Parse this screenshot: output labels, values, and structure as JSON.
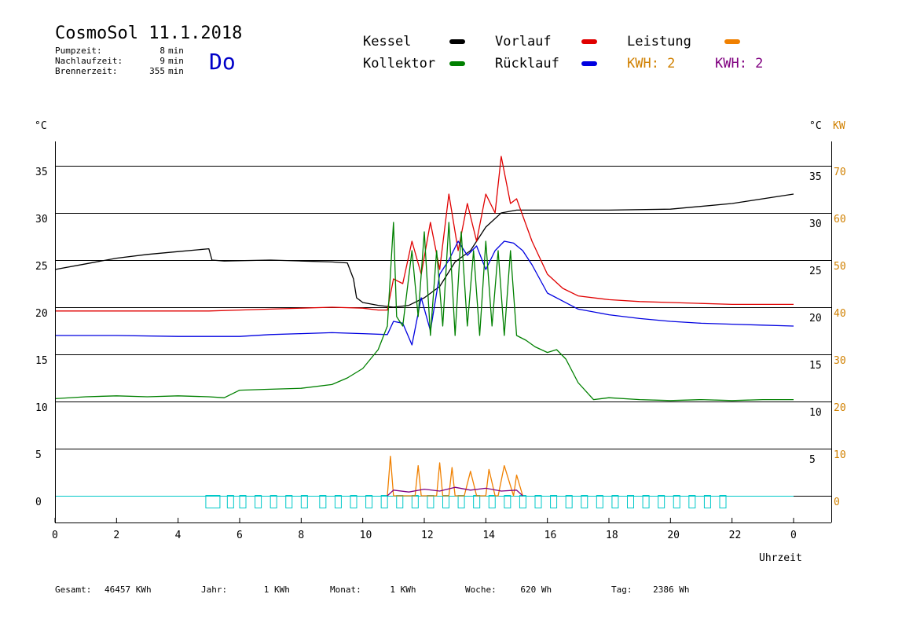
{
  "header": {
    "title": "CosmoSol 11.1.2018",
    "day": "Do",
    "stats": [
      {
        "label": "Pumpzeit:",
        "value": "8",
        "unit": "min"
      },
      {
        "label": "Nachlaufzeit:",
        "value": "9",
        "unit": "min"
      },
      {
        "label": "Brennerzeit:",
        "value": "355",
        "unit": "min"
      }
    ]
  },
  "legend": {
    "kessel": {
      "label": "Kessel",
      "color": "#000000"
    },
    "vorlauf": {
      "label": "Vorlauf",
      "color": "#e00000"
    },
    "leistung": {
      "label": "Leistung",
      "color": "#f08000"
    },
    "kollektor": {
      "label": "Kollektor",
      "color": "#008000"
    },
    "ruecklauf": {
      "label": "Rücklauf",
      "color": "#0000e0"
    },
    "kwh1": {
      "label": "KWH: 2",
      "color": "#d08000"
    },
    "kwh2": {
      "label": "KWH: 2",
      "color": "#800080"
    }
  },
  "axes": {
    "left_unit": "°C",
    "right_unit": "°C",
    "kw_unit": "KW",
    "x_label": "Uhrzeit",
    "y_left_ticks": [
      "35",
      "30",
      "25",
      "20",
      "15",
      "10",
      "5",
      "0"
    ],
    "y_right_ticks": [
      "35",
      "30",
      "25",
      "20",
      "15",
      "10",
      "5"
    ],
    "kw_ticks": [
      "70",
      "60",
      "50",
      "40",
      "30",
      "20",
      "10",
      "0"
    ],
    "x_ticks": [
      "0",
      "2",
      "4",
      "6",
      "8",
      "10",
      "12",
      "14",
      "16",
      "18",
      "20",
      "22",
      "0"
    ]
  },
  "footer": {
    "gesamt": {
      "label": "Gesamt:",
      "value": "46457 KWh"
    },
    "jahr": {
      "label": "Jahr:",
      "value": "1 KWh"
    },
    "monat": {
      "label": "Monat:",
      "value": "1 KWh"
    },
    "woche": {
      "label": "Woche:",
      "value": "620 Wh"
    },
    "tag": {
      "label": "Tag:",
      "value": "2386 Wh"
    }
  },
  "chart_data": {
    "type": "line",
    "xlim": [
      0,
      24
    ],
    "ylim": [
      0,
      38
    ],
    "y2lim": [
      0,
      76
    ],
    "grid": true,
    "series": [
      {
        "name": "Kessel",
        "color": "#000000",
        "x": [
          0,
          1,
          2,
          3,
          4,
          5,
          5.1,
          5.5,
          7,
          8,
          9,
          9.5,
          9.7,
          9.8,
          10,
          10.5,
          11,
          11.5,
          12,
          12.5,
          13,
          13.5,
          14,
          14.5,
          15,
          17.9,
          18,
          20,
          22,
          24
        ],
        "y": [
          24,
          24.6,
          25.2,
          25.6,
          25.9,
          26.2,
          25,
          24.9,
          25,
          24.9,
          24.8,
          24.7,
          23,
          21,
          20.5,
          20.2,
          20.0,
          20.2,
          21,
          22.2,
          24.8,
          26,
          28.5,
          30,
          30.3,
          30.3,
          30.3,
          30.4,
          31,
          32
        ]
      },
      {
        "name": "Vorlauf",
        "color": "#e00000",
        "x": [
          0,
          2,
          4,
          5,
          6,
          7,
          8,
          9,
          10,
          10.5,
          10.8,
          11,
          11.3,
          11.6,
          11.9,
          12.2,
          12.5,
          12.8,
          13.1,
          13.4,
          13.7,
          14,
          14.3,
          14.5,
          14.8,
          15,
          15.5,
          16,
          16.5,
          17,
          18,
          19,
          20,
          21,
          22,
          23,
          24
        ],
        "y": [
          19.6,
          19.6,
          19.6,
          19.6,
          19.7,
          19.8,
          19.9,
          20.0,
          19.9,
          19.7,
          19.7,
          23,
          22.5,
          27,
          23.5,
          29,
          24,
          32,
          26,
          31,
          27,
          32,
          30,
          36,
          31,
          31.5,
          27,
          23.5,
          22,
          21.2,
          20.8,
          20.6,
          20.5,
          20.4,
          20.3,
          20.3,
          20.3
        ]
      },
      {
        "name": "Rücklauf",
        "color": "#0000e0",
        "x": [
          0,
          2,
          4,
          6,
          7,
          8,
          9,
          10,
          10.8,
          11,
          11.3,
          11.6,
          11.9,
          12.2,
          12.5,
          12.8,
          13.1,
          13.4,
          13.7,
          14,
          14.3,
          14.6,
          14.9,
          15.2,
          15.5,
          16,
          17,
          18,
          19,
          20,
          21,
          22,
          23,
          24
        ],
        "y": [
          17,
          17,
          16.9,
          16.9,
          17.1,
          17.2,
          17.3,
          17.2,
          17.1,
          18.5,
          18.3,
          16,
          21,
          17.5,
          23.5,
          25,
          27,
          25.5,
          26.5,
          24,
          26,
          27,
          26.8,
          26,
          24.5,
          21.5,
          19.8,
          19.2,
          18.8,
          18.5,
          18.3,
          18.2,
          18.1,
          18.0
        ]
      },
      {
        "name": "Kollektor",
        "color": "#008000",
        "x": [
          0,
          1,
          2,
          3,
          4,
          5,
          5.5,
          6,
          7,
          8,
          9,
          9.5,
          10,
          10.5,
          10.8,
          11,
          11.1,
          11.3,
          11.6,
          11.8,
          12,
          12.2,
          12.4,
          12.6,
          12.8,
          13,
          13.2,
          13.4,
          13.6,
          13.8,
          14,
          14.2,
          14.4,
          14.6,
          14.8,
          15,
          15.3,
          15.6,
          16,
          16.3,
          16.6,
          17,
          17.5,
          18,
          19,
          20,
          21,
          22,
          23,
          24
        ],
        "y": [
          10.3,
          10.5,
          10.6,
          10.5,
          10.6,
          10.5,
          10.4,
          11.2,
          11.3,
          11.4,
          11.8,
          12.5,
          13.5,
          15.5,
          18,
          29,
          19,
          18,
          26,
          19,
          28,
          17,
          26,
          18,
          29,
          17,
          28,
          18,
          26,
          17,
          27,
          18,
          26,
          17,
          26,
          17,
          16.5,
          15.8,
          15.2,
          15.5,
          14.5,
          12,
          10.2,
          10.4,
          10.2,
          10.1,
          10.2,
          10.1,
          10.2,
          10.2
        ]
      },
      {
        "name": "Leistung",
        "color": "#f08000",
        "x": [
          10.8,
          10.9,
          11,
          11.7,
          11.8,
          11.9,
          12.4,
          12.5,
          12.6,
          12.8,
          12.9,
          13,
          13.3,
          13.5,
          13.7,
          14,
          14.1,
          14.3,
          14.4,
          14.6,
          14.9,
          15,
          15.2
        ],
        "y": [
          0,
          4.2,
          0,
          0,
          3.2,
          0,
          0,
          3.5,
          0,
          0,
          3.0,
          0,
          0,
          2.6,
          0,
          0,
          2.8,
          0,
          0,
          3.2,
          0,
          2.2,
          0
        ]
      },
      {
        "name": "KWH",
        "color": "#800080",
        "x": [
          10.8,
          11,
          11.5,
          12,
          12.5,
          13,
          13.5,
          14,
          14.5,
          15,
          15.2
        ],
        "y": [
          0,
          0.6,
          0.4,
          0.7,
          0.5,
          0.9,
          0.6,
          0.8,
          0.5,
          0.6,
          0
        ]
      }
    ],
    "pump_blocks_hours": [
      4.9,
      5.6,
      6.0,
      6.5,
      7.0,
      7.5,
      8.0,
      8.6,
      9.1,
      9.6,
      10.1,
      10.6,
      11.1,
      11.6,
      12.1,
      12.6,
      13.1,
      13.6,
      14.1,
      14.6,
      15.1,
      15.6,
      16.1,
      16.6,
      17.1,
      17.6,
      18.1,
      18.6,
      19.1,
      19.6,
      20.1,
      20.6,
      21.1,
      21.6
    ]
  }
}
